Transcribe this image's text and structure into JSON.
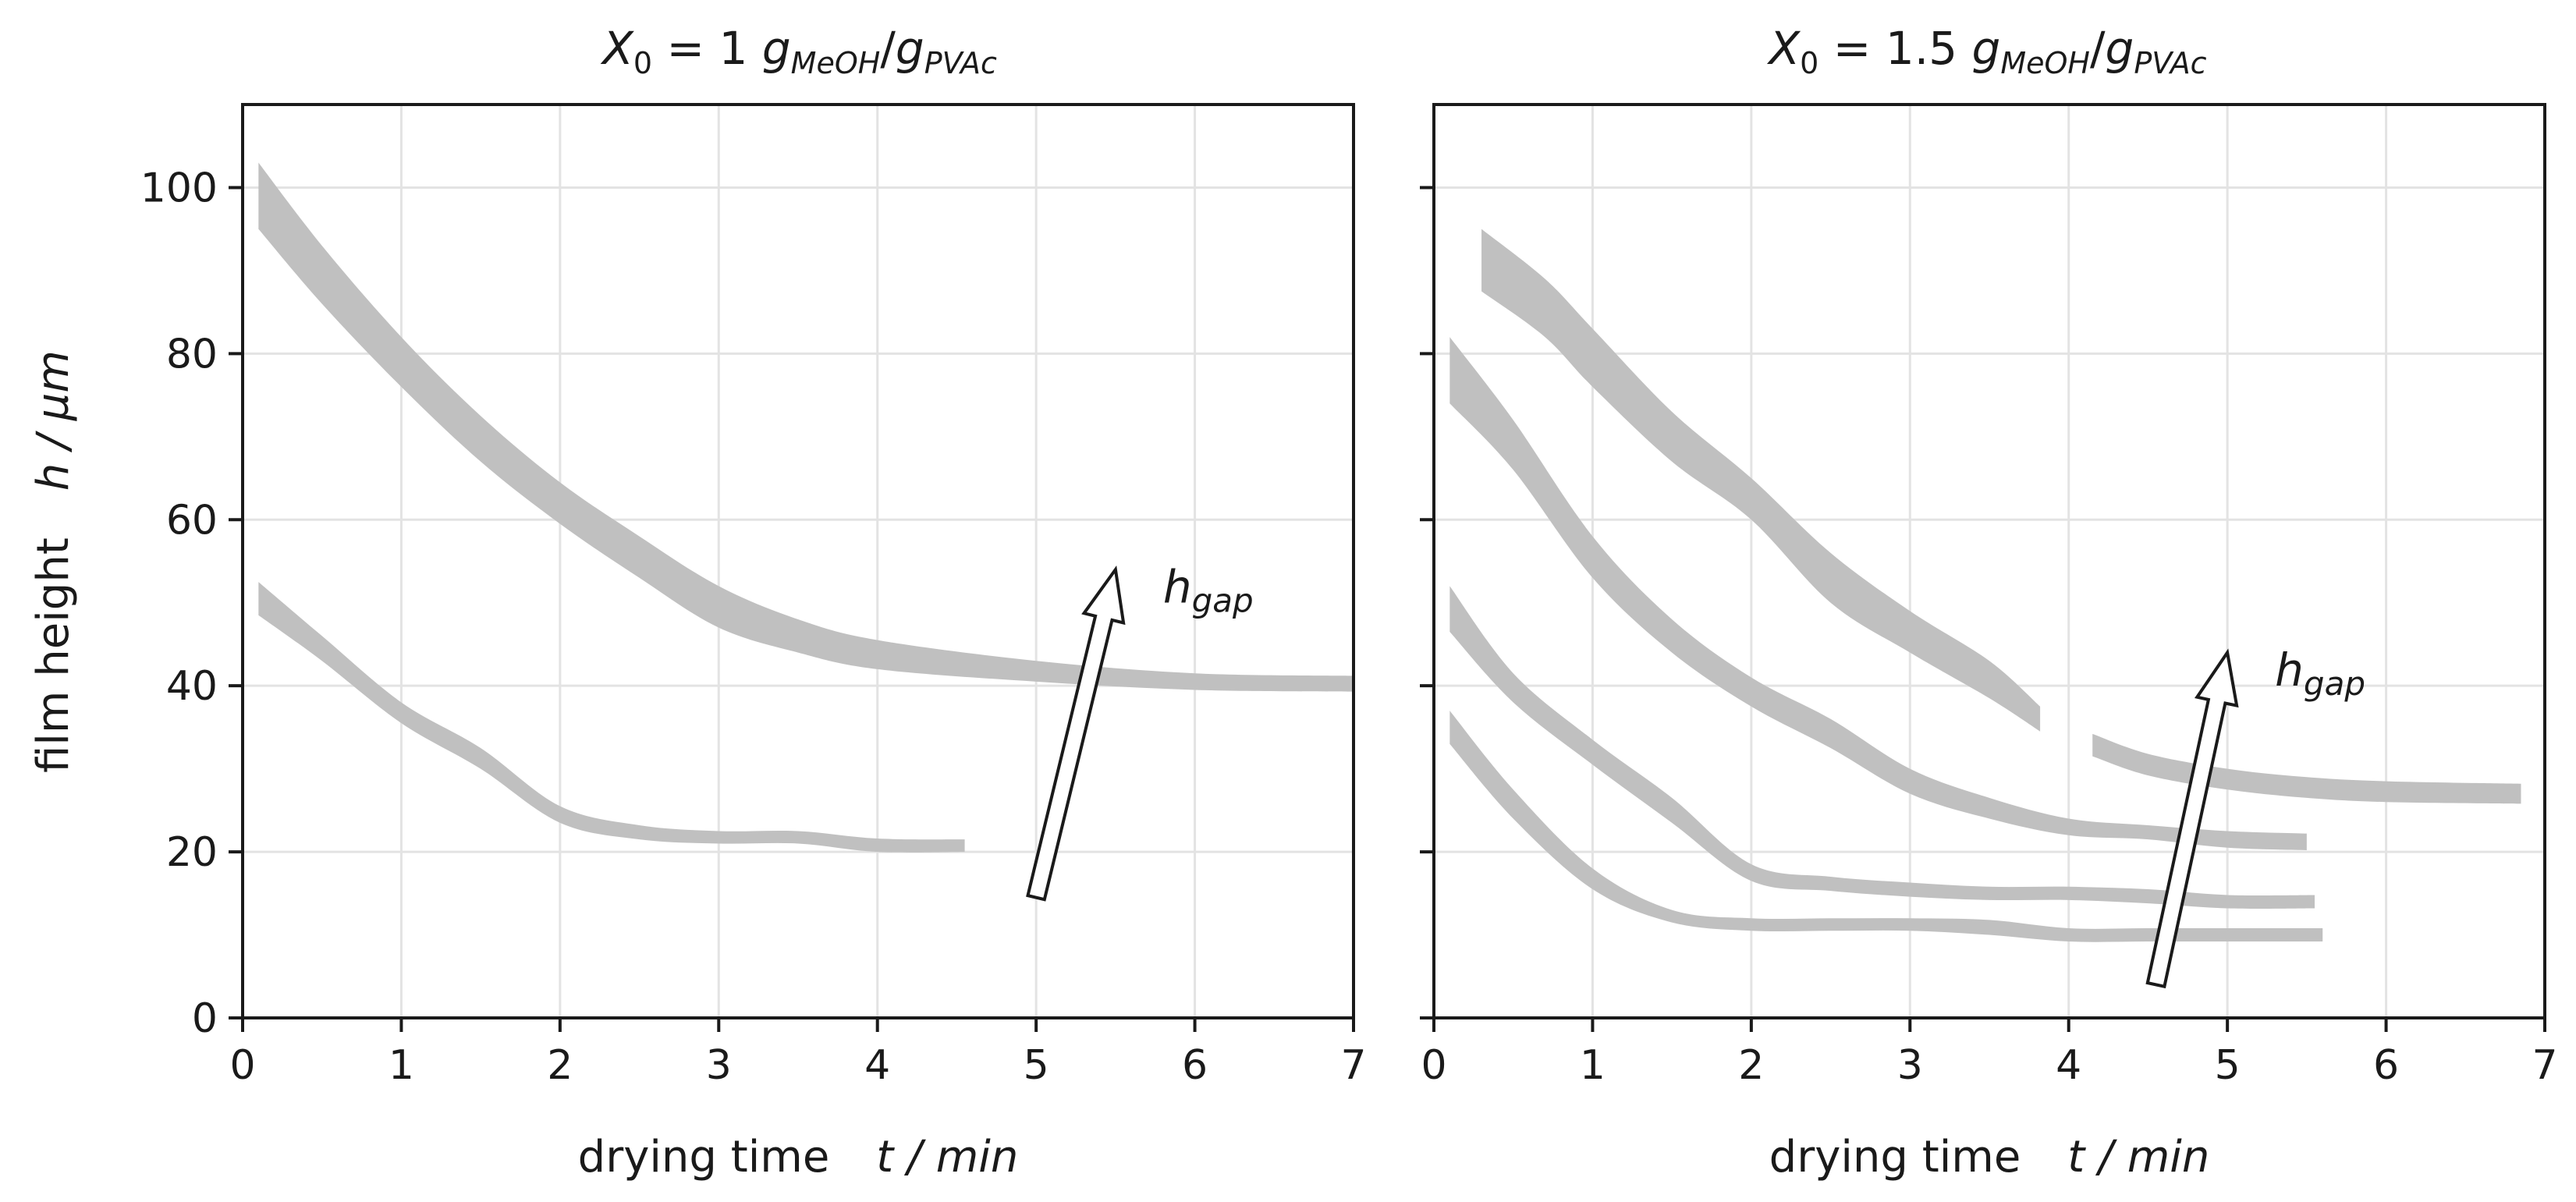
{
  "chart_data": [
    {
      "type": "area",
      "title": {
        "base": "X",
        "sub0": "0",
        "rest": " = 1 ",
        "g": "g",
        "num": "MeOH",
        "slash": "/",
        "g2": "g",
        "den": "PVAc"
      },
      "xlabel": {
        "text": "drying time",
        "var": "t / min"
      },
      "ylabel": {
        "text": "film height",
        "var": "h / µm"
      },
      "xlim": [
        0,
        7
      ],
      "ylim": [
        0,
        110
      ],
      "xticks": [
        "0",
        "1",
        "2",
        "3",
        "4",
        "5",
        "6",
        "7"
      ],
      "yticks": [
        "0",
        "20",
        "40",
        "60",
        "80",
        "100"
      ],
      "grid": true,
      "band_color": "#c0c0c0",
      "annotation": {
        "text": "h",
        "sub": "gap",
        "x": 5.8,
        "y": 50,
        "arrow_from": [
          5.0,
          14.5
        ],
        "arrow_to": [
          5.5,
          54
        ]
      },
      "series": [
        {
          "name": "upper",
          "x": [
            0.1,
            0.5,
            1.0,
            1.5,
            2.0,
            2.5,
            3.0,
            3.5,
            4.0,
            5.0,
            6.0,
            7.0
          ],
          "lower": [
            95,
            86,
            76,
            67,
            59.5,
            53,
            47,
            44,
            42,
            40.5,
            39.5,
            39.3
          ],
          "upper": [
            103,
            93,
            82,
            72.5,
            64.5,
            58,
            52,
            48,
            45.5,
            43,
            41.5,
            41.2
          ]
        },
        {
          "name": "lower",
          "x": [
            0.1,
            0.5,
            1.0,
            1.5,
            2.0,
            2.5,
            3.0,
            3.5,
            4.0,
            4.55
          ],
          "lower": [
            48.5,
            43,
            35.5,
            30,
            23.5,
            21.5,
            21,
            21,
            20,
            20
          ],
          "upper": [
            52.5,
            46,
            38,
            32.5,
            25.5,
            23.2,
            22.5,
            22.5,
            21.6,
            21.5
          ]
        }
      ]
    },
    {
      "type": "area",
      "title": {
        "base": "X",
        "sub0": "0",
        "rest": " = 1.5 ",
        "g": "g",
        "num": "MeOH",
        "slash": "/",
        "g2": "g",
        "den": "PVAc"
      },
      "xlabel": {
        "text": "drying time",
        "var": "t / min"
      },
      "xlim": [
        0,
        7
      ],
      "ylim": [
        0,
        110
      ],
      "xticks": [
        "0",
        "1",
        "2",
        "3",
        "4",
        "5",
        "6",
        "7"
      ],
      "grid": true,
      "band_color": "#c0c0c0",
      "annotation": {
        "text": "h",
        "sub": "gap",
        "x": 5.3,
        "y": 40,
        "arrow_from": [
          4.55,
          4
        ],
        "arrow_to": [
          5.0,
          44
        ]
      },
      "series": [
        {
          "name": "top-left",
          "x": [
            0.3,
            0.7,
            1.0,
            1.5,
            2.0,
            2.5,
            3.0,
            3.5,
            3.82
          ],
          "lower": [
            87.5,
            82,
            76,
            67,
            60,
            50,
            44,
            38.5,
            34.5
          ],
          "upper": [
            95,
            89,
            83,
            73,
            65,
            56,
            49,
            43,
            37.5
          ]
        },
        {
          "name": "top-right",
          "x": [
            4.15,
            4.5,
            5.0,
            5.5,
            6.0,
            6.85
          ],
          "lower": [
            31.5,
            29.2,
            27.5,
            26.5,
            26,
            25.8
          ],
          "upper": [
            34.2,
            31.8,
            30,
            29,
            28.5,
            28.2
          ]
        },
        {
          "name": "second",
          "x": [
            0.1,
            0.5,
            1.0,
            1.5,
            2.0,
            2.5,
            3.0,
            3.5,
            4.0,
            4.5,
            5.0,
            5.5
          ],
          "lower": [
            74,
            66,
            53,
            44,
            37.5,
            32.5,
            27,
            24,
            22,
            21.5,
            20.5,
            20.2
          ],
          "upper": [
            82,
            72,
            58,
            48,
            41,
            36,
            30,
            26.5,
            24,
            23.2,
            22.5,
            22.2
          ]
        },
        {
          "name": "third",
          "x": [
            0.1,
            0.5,
            1.0,
            1.5,
            2.0,
            2.5,
            3.0,
            3.5,
            4.0,
            4.5,
            5.0,
            5.55
          ],
          "lower": [
            46.5,
            38,
            30.5,
            23.5,
            16.5,
            15.3,
            14.6,
            14.2,
            14.2,
            13.8,
            13.2,
            13.2
          ],
          "upper": [
            52,
            41.5,
            33.5,
            26.5,
            18.5,
            17,
            16.3,
            15.8,
            15.8,
            15.5,
            14.8,
            14.8
          ]
        },
        {
          "name": "bottom",
          "x": [
            0.1,
            0.5,
            1.0,
            1.5,
            2.0,
            2.5,
            3.0,
            3.5,
            4.0,
            4.5,
            5.0,
            5.6
          ],
          "lower": [
            33,
            24,
            15.5,
            11.5,
            10.5,
            10.5,
            10.5,
            10,
            9.2,
            9.2,
            9.2,
            9.2
          ],
          "upper": [
            37,
            27.5,
            18,
            13,
            12,
            12,
            12,
            11.8,
            10.8,
            10.8,
            10.8,
            10.8
          ]
        }
      ]
    }
  ]
}
